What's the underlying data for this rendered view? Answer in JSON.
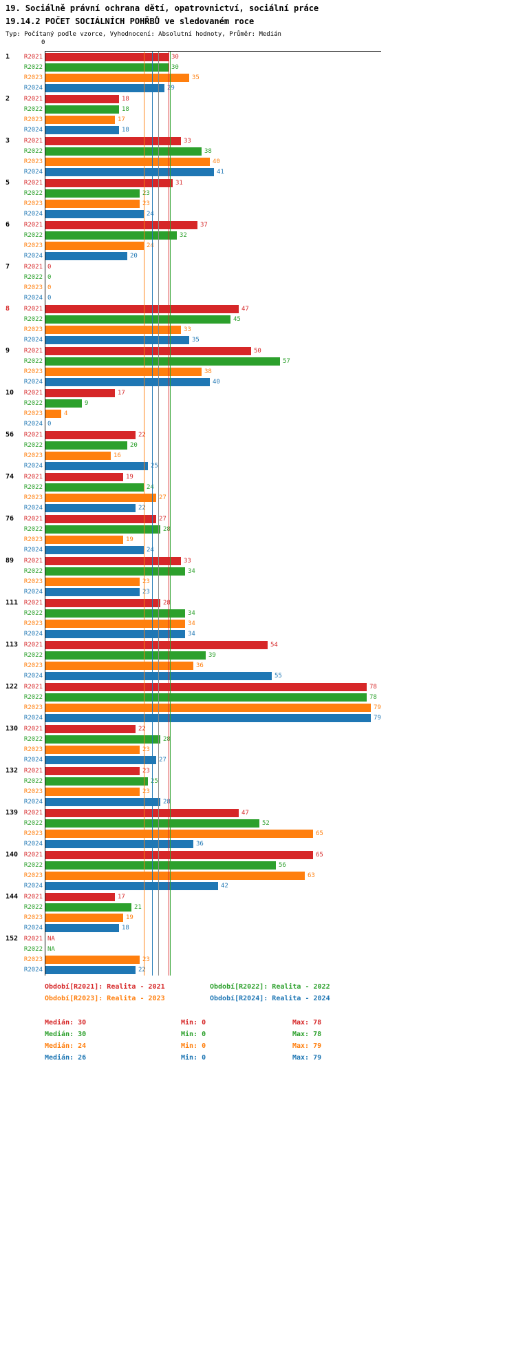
{
  "header": {
    "title_line1": "19. Sociálně právní ochrana dětí, opatrovnictví, sociální práce",
    "title_line2": "19.14.2 POČET SOCIÁLNÍCH POHŘBŮ ve sledovaném roce",
    "subtitle": "Typ: Počítaný podle vzorce, Vyhodnocení: Absolutní hodnoty, Průměr: Medián"
  },
  "axis": {
    "zero_tick_label": "0"
  },
  "colors": {
    "red_2021": "#d62728",
    "green_2022": "#2ca02c",
    "orange_2023": "#ff7f0e",
    "blue_2024": "#1f77b4",
    "highlighted_category_label": "#d62728",
    "axis": "#1a1a1a",
    "overall_reference_line": "#888888"
  },
  "chart_data": {
    "type": "bar",
    "orientation": "horizontal",
    "title": "19.14.2 POČET SOCIÁLNÍCH POHŘBŮ ve sledovaném roce",
    "xlim": [
      0,
      80
    ],
    "grid": false,
    "legend_position": "bottom",
    "na_text": "NA",
    "categories": [
      "1",
      "2",
      "3",
      "5",
      "6",
      "7",
      "8",
      "9",
      "10",
      "56",
      "74",
      "76",
      "89",
      "111",
      "113",
      "122",
      "130",
      "132",
      "139",
      "140",
      "144",
      "152"
    ],
    "highlighted_category": "8",
    "series": [
      {
        "name": "R2021",
        "legend_label": "Období[R2021]: Realita - 2021",
        "color": "#d62728",
        "values": [
          30,
          18,
          33,
          31,
          37,
          0,
          47,
          50,
          17,
          22,
          19,
          27,
          33,
          28,
          54,
          78,
          22,
          23,
          47,
          65,
          17,
          "NA"
        ],
        "median": 30,
        "min": 0,
        "max": 78,
        "median_label": "Medián: 30",
        "min_label": "Min: 0",
        "max_label": "Max: 78"
      },
      {
        "name": "R2022",
        "legend_label": "Období[R2022]: Realita - 2022",
        "color": "#2ca02c",
        "values": [
          30,
          18,
          38,
          23,
          32,
          0,
          45,
          57,
          9,
          20,
          24,
          28,
          34,
          34,
          39,
          78,
          28,
          25,
          52,
          56,
          21,
          "NA"
        ],
        "median": 30,
        "min": 0,
        "max": 78,
        "median_label": "Medián: 30",
        "min_label": "Min: 0",
        "max_label": "Max: 78"
      },
      {
        "name": "R2023",
        "legend_label": "Období[R2023]: Realita - 2023",
        "color": "#ff7f0e",
        "values": [
          35,
          17,
          40,
          23,
          24,
          0,
          33,
          38,
          4,
          16,
          27,
          19,
          23,
          34,
          36,
          79,
          23,
          23,
          65,
          63,
          19,
          23
        ],
        "median": 24,
        "min": 0,
        "max": 79,
        "median_label": "Medián: 24",
        "min_label": "Min: 0",
        "max_label": "Max: 79"
      },
      {
        "name": "R2024",
        "legend_label": "Období[R2024]: Realita - 2024",
        "color": "#1f77b4",
        "values": [
          29,
          18,
          41,
          24,
          20,
          0,
          35,
          40,
          0,
          25,
          22,
          24,
          23,
          34,
          55,
          79,
          27,
          28,
          36,
          42,
          18,
          22
        ],
        "median": 26,
        "min": 0,
        "max": 79,
        "median_label": "Medián: 26",
        "min_label": "Min: 0",
        "max_label": "Max: 79"
      }
    ],
    "reference_lines": [
      {
        "label": "R2023-median",
        "value": 24,
        "color": "#ff7f0e"
      },
      {
        "label": "R2024-median",
        "value": 26,
        "color": "#1f77b4"
      },
      {
        "label": "overall-median",
        "value": 27.5,
        "color": "#888888"
      },
      {
        "label": "R2021-median",
        "value": 30,
        "color": "#d62728"
      },
      {
        "label": "R2022-median",
        "value": 30,
        "color": "#2ca02c"
      }
    ]
  }
}
